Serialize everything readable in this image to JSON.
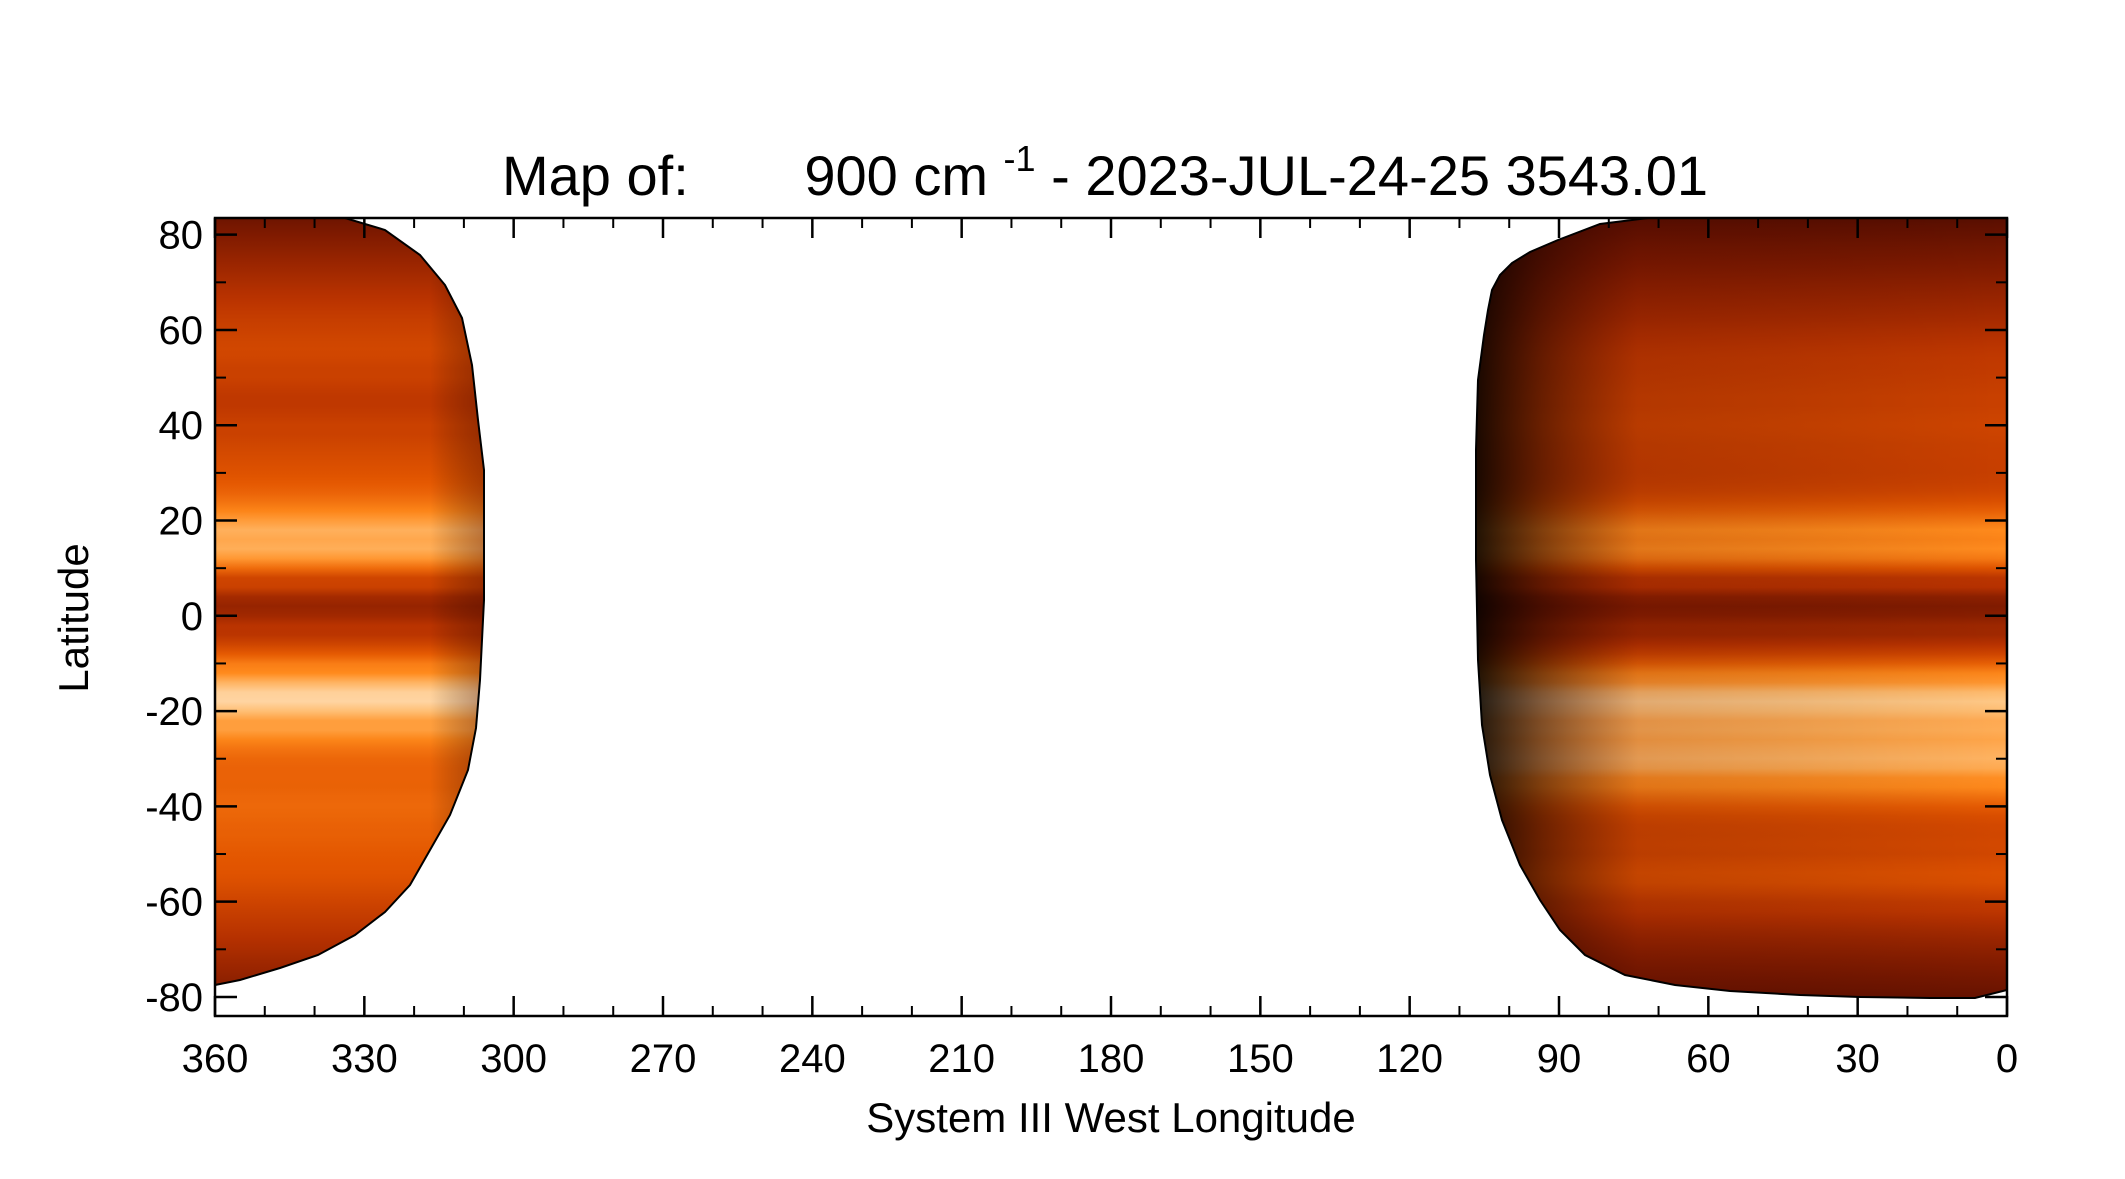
{
  "chart_data": {
    "type": "heatmap",
    "title": {
      "prefix": "Map of:",
      "wavenumber": "900 cm",
      "exponent": "-1",
      "suffix": " - 2023-JUL-24-25 3543.01"
    },
    "xlabel": "System III West Longitude",
    "ylabel": "Latitude",
    "xlim": [
      360,
      0
    ],
    "ylim": [
      -80,
      80
    ],
    "x_ticks": [
      360,
      330,
      300,
      270,
      240,
      210,
      180,
      150,
      120,
      90,
      60,
      30,
      0
    ],
    "y_ticks": [
      80,
      60,
      40,
      20,
      0,
      -20,
      -40,
      -60,
      -80
    ],
    "colormap": [
      "#000000",
      "#3a0500",
      "#7a1800",
      "#b83200",
      "#e35600",
      "#ff8a1c",
      "#ffc27a",
      "#ffffff"
    ],
    "coverage": [
      {
        "name": "west-segment",
        "lon_range": [
          360,
          306
        ],
        "bands": [
          {
            "lat": 12,
            "level": 0.98
          },
          {
            "lat": -17,
            "level": 0.92
          },
          {
            "lat": 2,
            "level": 0.35
          },
          {
            "lat": 45,
            "level": 0.45
          },
          {
            "lat": -40,
            "level": 0.62
          }
        ]
      },
      {
        "name": "east-segment",
        "lon_range": [
          106,
          0
        ],
        "bands": [
          {
            "lat": 12,
            "level": 0.88
          },
          {
            "lat": -18,
            "level": 0.9
          },
          {
            "lat": -30,
            "level": 0.82
          },
          {
            "lat": 2,
            "level": 0.3
          },
          {
            "lat": 40,
            "level": 0.5
          },
          {
            "lat": -55,
            "level": 0.55
          }
        ]
      }
    ]
  }
}
